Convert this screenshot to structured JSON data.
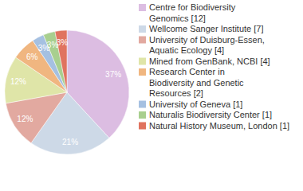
{
  "chart_data": {
    "type": "pie",
    "categories": [
      "Centre for Biodiversity Genomics [12]",
      "Wellcome Sanger Institute [7]",
      "University of Duisburg-Essen, Aquatic Ecology [4]",
      "Mined from GenBank, NCBI [4]",
      "Research Center in Biodiversity and Genetic Resources [2]",
      "University of Geneva [1]",
      "Naturalis Biodiversity Center [1]",
      "Natural History Museum, London [1]"
    ],
    "values": [
      37,
      21,
      12,
      12,
      6,
      3,
      3,
      3
    ],
    "value_labels": [
      "37%",
      "21%",
      "12%",
      "12%",
      "6%",
      "3%",
      "3%",
      "3%"
    ],
    "colors": [
      "#dcbde2",
      "#cdd9e7",
      "#e2a9a0",
      "#dfe5a8",
      "#f0b680",
      "#a5c0e1",
      "#a8cf8f",
      "#e0735f"
    ],
    "data_labels": true,
    "legend": "right"
  }
}
